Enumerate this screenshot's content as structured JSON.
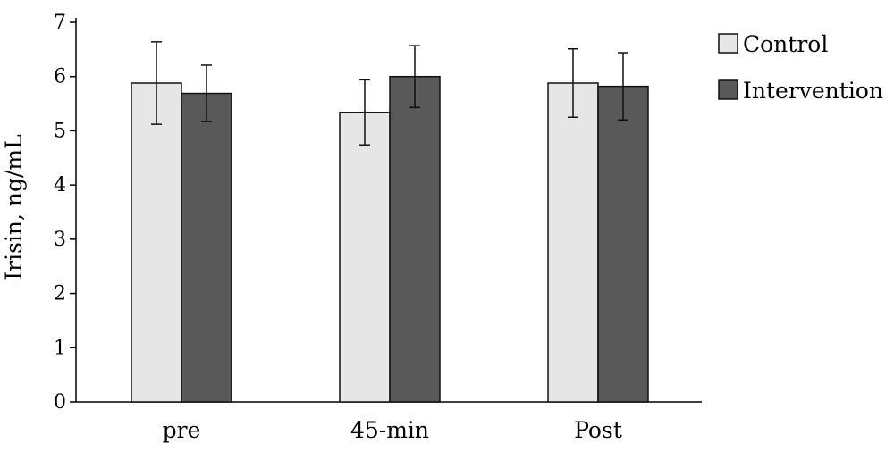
{
  "chart_data": {
    "type": "bar",
    "title": "",
    "xlabel": "",
    "ylabel": "Irisin, ng/mL",
    "ylim": [
      0,
      7
    ],
    "yticks": [
      0,
      1,
      2,
      3,
      4,
      5,
      6,
      7
    ],
    "categories": [
      "pre",
      "45-min",
      "Post"
    ],
    "series": [
      {
        "name": "Control",
        "color": "#e6e6e6",
        "values": [
          5.88,
          5.34,
          5.88
        ],
        "errors": [
          0.76,
          0.6,
          0.63
        ]
      },
      {
        "name": "Intervention",
        "color": "#595959",
        "values": [
          5.69,
          6.0,
          5.82
        ],
        "errors": [
          0.52,
          0.57,
          0.62
        ]
      }
    ],
    "legend": "top-right",
    "grid": false
  }
}
